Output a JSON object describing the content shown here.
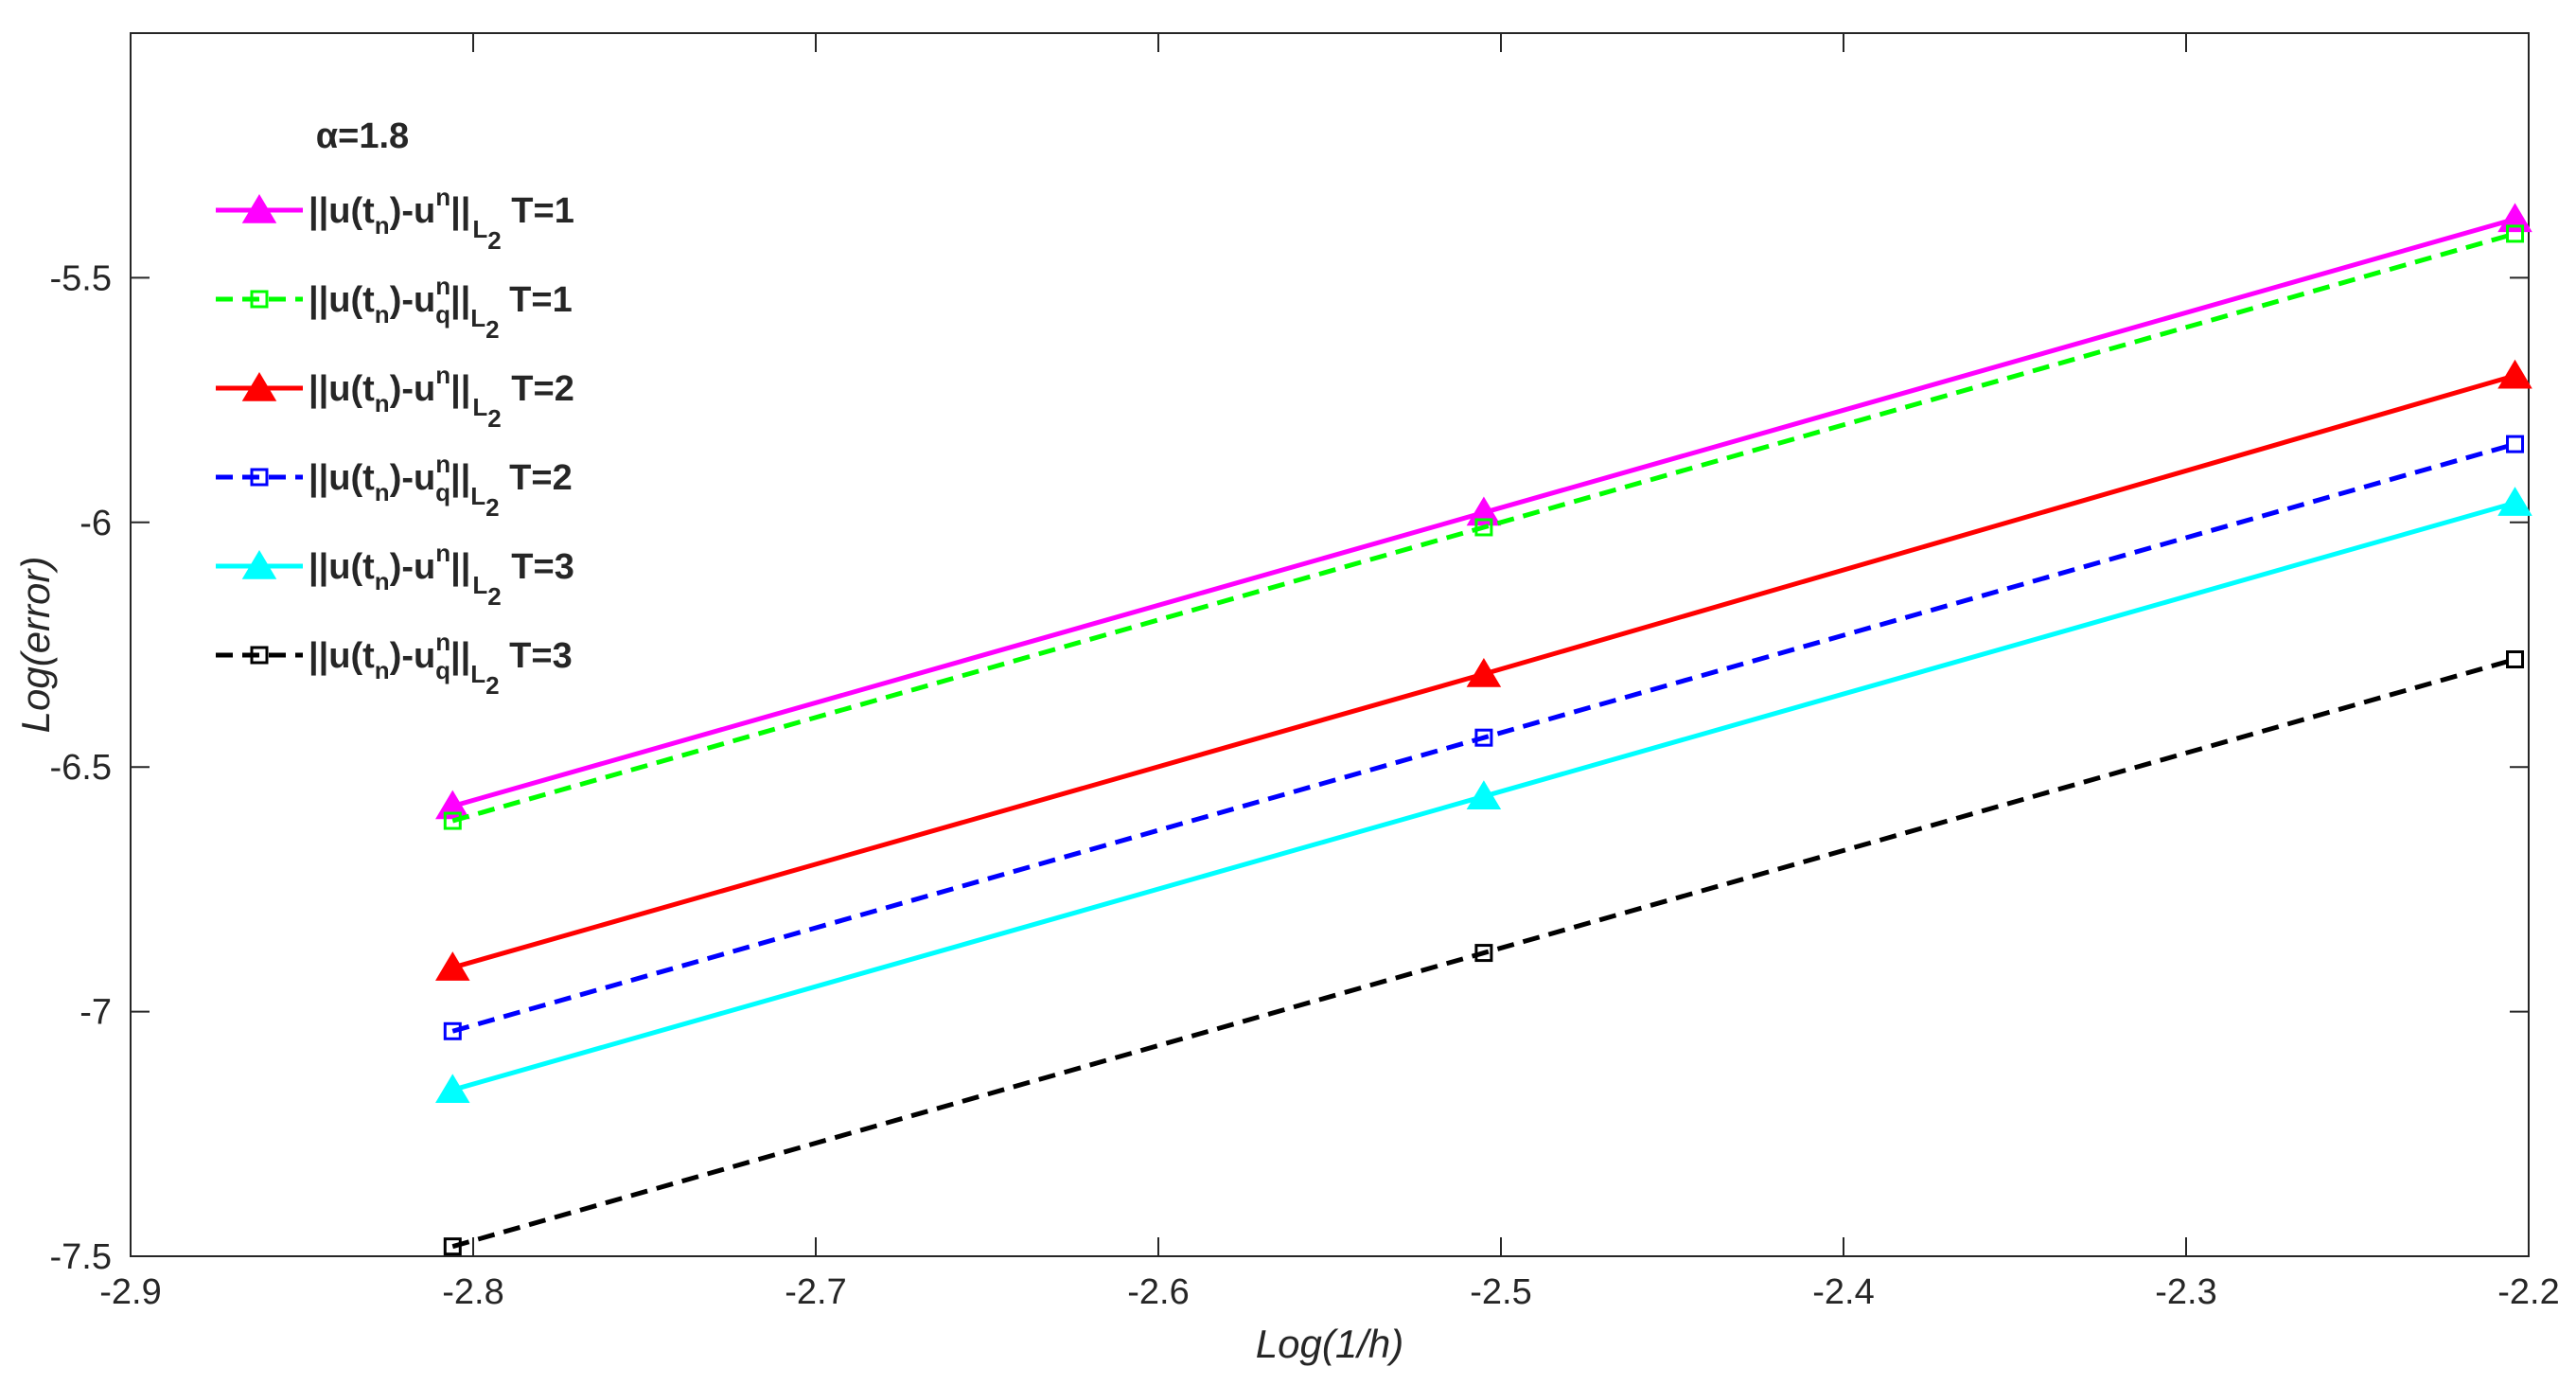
{
  "chart_data": {
    "type": "line",
    "title": "",
    "xlabel": "Log(1/h)",
    "ylabel": "Log(error)",
    "xlim": [
      -2.9,
      -2.2
    ],
    "ylim": [
      -7.5,
      -5.0
    ],
    "xticks": [
      -2.9,
      -2.8,
      -2.7,
      -2.6,
      -2.5,
      -2.4,
      -2.3,
      -2.2
    ],
    "xtick_labels": [
      "-2.9",
      "-2.8",
      "-2.7",
      "-2.6",
      "-2.5",
      "-2.4",
      "-2.3",
      "-2.2"
    ],
    "yticks": [
      -7.5,
      -7.0,
      -6.5,
      -6.0,
      -5.5
    ],
    "ytick_labels": [
      "-7.5",
      "-7",
      "-6.5",
      "-6",
      "-5.5"
    ],
    "grid": false,
    "legend_title": "α=1.8",
    "legend_position": "top-left",
    "x": [
      -2.806,
      -2.505,
      -2.204
    ],
    "series": [
      {
        "name": "||u(t_n)-u^n||_L2 T=1",
        "label_parts": [
          "||u(t",
          "n",
          ")-u",
          "n",
          "||",
          "L",
          "2",
          " T=1"
        ],
        "quadrature": false,
        "color": "#ff00ff",
        "dash": false,
        "marker": "triangle",
        "values": [
          -6.58,
          -5.98,
          -5.38
        ]
      },
      {
        "name": "||u(t_n)-u_q^n||_L2 T=1",
        "label_parts": [
          "||u(t",
          "n",
          ")-u",
          "n",
          "q",
          "||",
          "L",
          "2",
          " T=1"
        ],
        "quadrature": true,
        "color": "#00ff00",
        "dash": true,
        "marker": "square",
        "values": [
          -6.61,
          -6.01,
          -5.41
        ]
      },
      {
        "name": "||u(t_n)-u^n||_L2 T=2",
        "label_parts": [
          "||u(t",
          "n",
          ")-u",
          "n",
          "||",
          "L",
          "2",
          " T=2"
        ],
        "quadrature": false,
        "color": "#ff0000",
        "dash": false,
        "marker": "triangle",
        "values": [
          -6.91,
          -6.31,
          -5.7
        ]
      },
      {
        "name": "||u(t_n)-u_q^n||_L2 T=2",
        "label_parts": [
          "||u(t",
          "n",
          ")-u",
          "n",
          "q",
          "||",
          "L",
          "2",
          " T=2"
        ],
        "quadrature": true,
        "color": "#0000ff",
        "dash": true,
        "marker": "square",
        "values": [
          -7.04,
          -6.44,
          -5.84
        ]
      },
      {
        "name": "||u(t_n)-u^n||_L2 T=3",
        "label_parts": [
          "||u(t",
          "n",
          ")-u",
          "n",
          "||",
          "L",
          "2",
          " T=3"
        ],
        "quadrature": false,
        "color": "#00ffff",
        "dash": false,
        "marker": "triangle",
        "values": [
          -7.16,
          -6.56,
          -5.96
        ]
      },
      {
        "name": "||u(t_n)-u_q^n||_L2 T=3",
        "label_parts": [
          "||u(t",
          "n",
          ")-u",
          "n",
          "q",
          "||",
          "L",
          "2",
          " T=3"
        ],
        "quadrature": true,
        "color": "#000000",
        "dash": true,
        "marker": "square",
        "values": [
          -7.48,
          -6.88,
          -6.28
        ]
      }
    ]
  }
}
